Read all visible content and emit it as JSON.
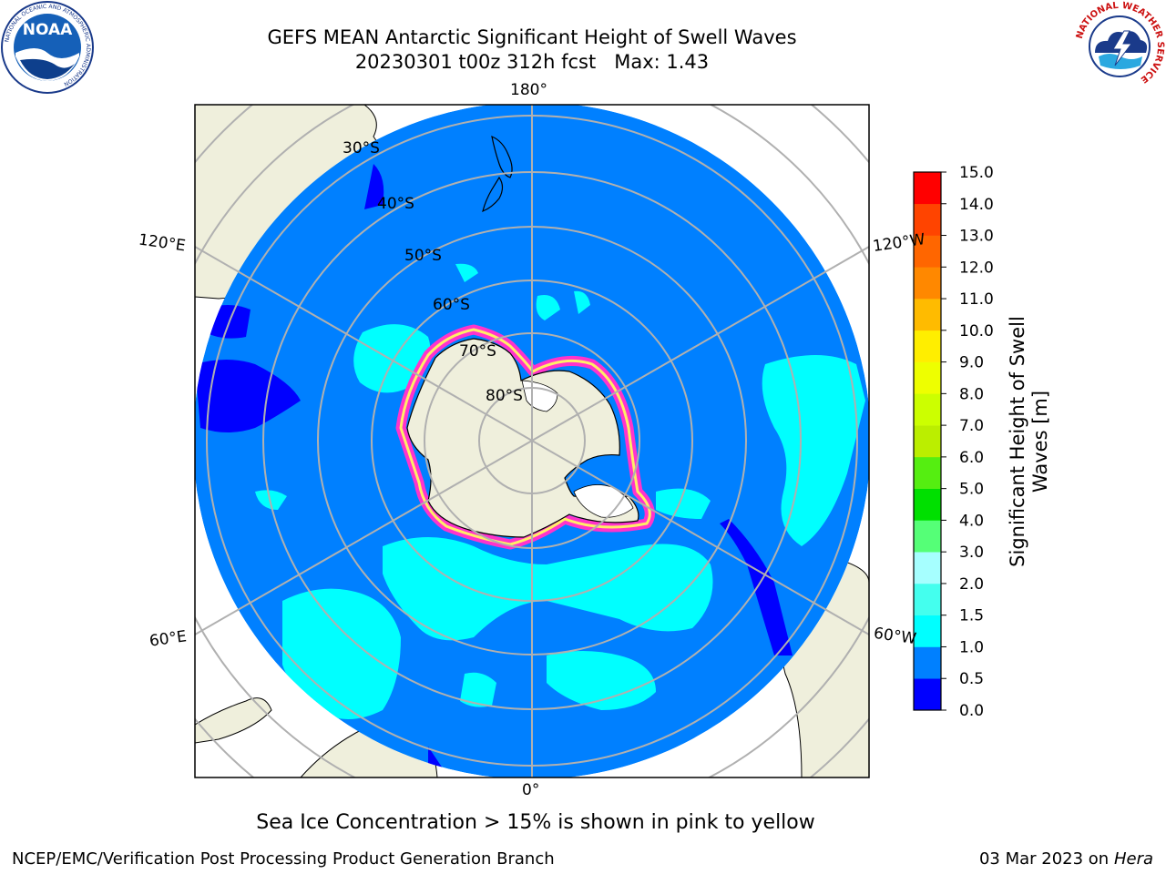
{
  "header": {
    "title_line1": "GEFS MEAN Antarctic Significant Height of Swell Waves",
    "title_line2": "20230301 t00z 312h fcst   Max: 1.43"
  },
  "logos": {
    "noaa": {
      "text": "NOAA",
      "ring_text": "NATIONAL OCEANIC AND ATMOSPHERIC ADMINISTRATION"
    },
    "nws": {
      "ring_text": "NATIONAL WEATHER SERVICE"
    }
  },
  "map": {
    "projection": "south-polar-stereographic",
    "longitude_labels": [
      "180°",
      "120°E",
      "120°W",
      "60°E",
      "60°W",
      "0°"
    ],
    "latitude_labels": [
      "30°S",
      "40°S",
      "50°S",
      "60°S",
      "70°S",
      "80°S"
    ],
    "colors": {
      "land": "#efefdc",
      "ocean_0_5_1_0": "#0080ff",
      "ocean_0_0_5": "#0000ff",
      "ocean_1_0_1_5": "#00ffff",
      "sea_ice_edge": "#ff33cc"
    }
  },
  "colorbar": {
    "label_line1": "Significant Height of Swell",
    "label_line2": "Waves [m]",
    "ticks": [
      "0.0",
      "0.5",
      "1.0",
      "1.5",
      "2.0",
      "3.0",
      "4.0",
      "5.0",
      "6.0",
      "7.0",
      "8.0",
      "9.0",
      "10.0",
      "11.0",
      "12.0",
      "13.0",
      "14.0",
      "15.0"
    ],
    "bin_colors": [
      "#0000ff",
      "#0080ff",
      "#00ffff",
      "#44ffee",
      "#a6ffff",
      "#55ff77",
      "#00e000",
      "#55ee11",
      "#bbee00",
      "#ccff00",
      "#eeff00",
      "#ffee00",
      "#ffbb00",
      "#ff8800",
      "#ff6600",
      "#ff4400",
      "#ff0000"
    ]
  },
  "footer": {
    "sea_ice_note": "Sea Ice Concentration > 15% is shown in pink to yellow",
    "credit_left": "NCEP/EMC/Verification Post Processing Product Generation Branch",
    "date": "03 Mar 2023 on",
    "host": "Hera"
  }
}
